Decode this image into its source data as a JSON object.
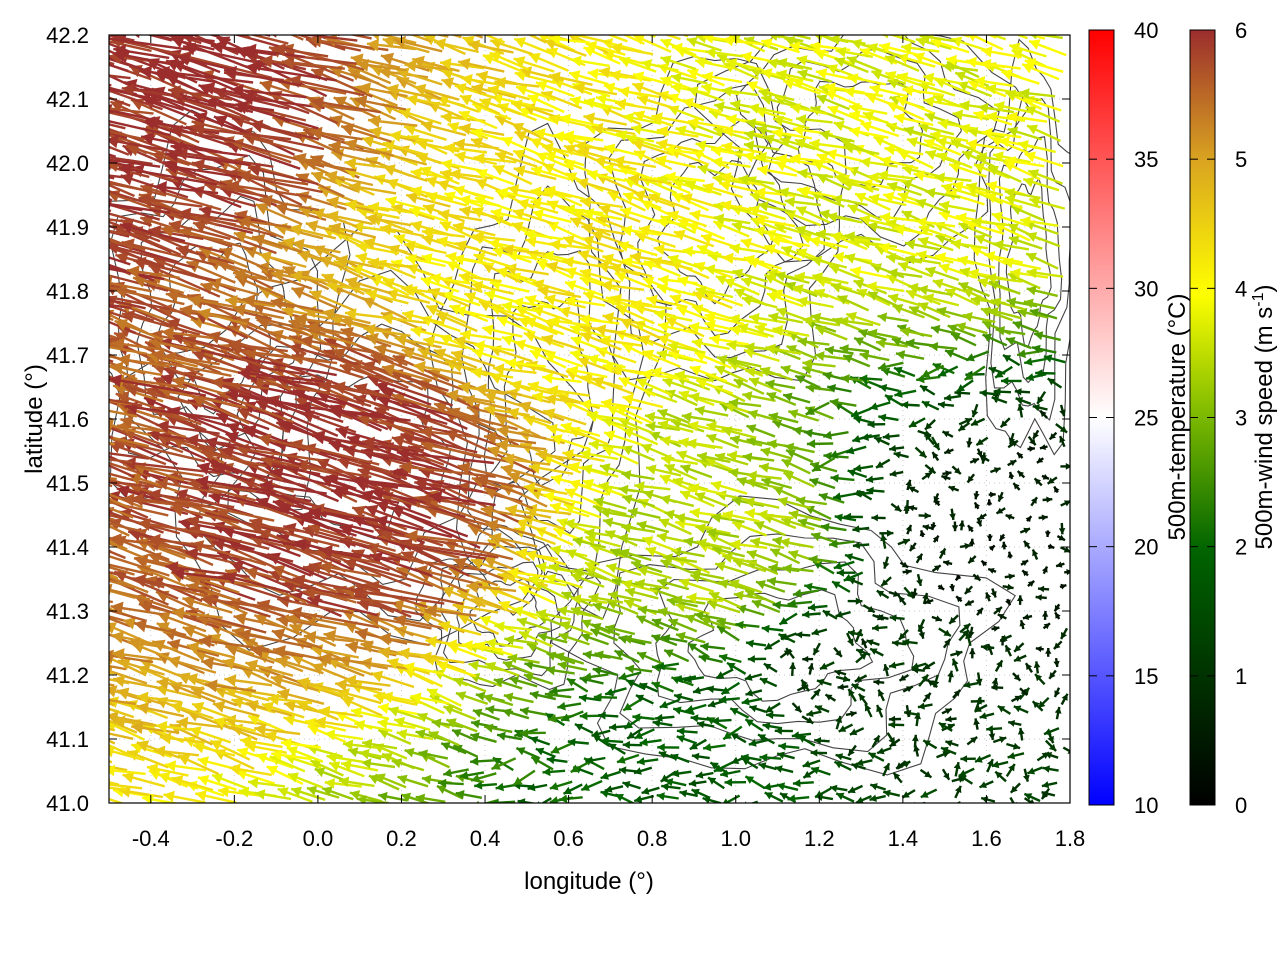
{
  "chart_data": {
    "type": "vector-field",
    "xlabel": "longitude (°)",
    "ylabel": "latitude (°)",
    "xlim": [
      -0.5,
      1.8
    ],
    "ylim": [
      41.0,
      42.2
    ],
    "xticks": [
      -0.4,
      -0.2,
      0.0,
      0.2,
      0.4,
      0.6,
      0.8,
      1.0,
      1.2,
      1.4,
      1.6,
      1.8
    ],
    "yticks": [
      41.0,
      41.1,
      41.2,
      41.3,
      41.4,
      41.5,
      41.6,
      41.7,
      41.8,
      41.9,
      42.0,
      42.1,
      42.2
    ],
    "xtick_labels": [
      "-0.4",
      "-0.2",
      "0.0",
      "0.2",
      "0.4",
      "0.6",
      "0.8",
      "1.0",
      "1.2",
      "1.4",
      "1.6",
      "1.8"
    ],
    "ytick_labels": [
      "41.0",
      "41.1",
      "41.2",
      "41.3",
      "41.4",
      "41.5",
      "41.6",
      "41.7",
      "41.8",
      "41.9",
      "42.0",
      "42.1",
      "42.2"
    ],
    "grid": true,
    "wind_field_description": "strong westward-south-westward 500 m winds over the west and north, weakening to near calm over the south-east (coast)",
    "wind_speed_samples": [
      {
        "lon": -0.4,
        "lat": 42.1,
        "speed": 6.0
      },
      {
        "lon": 0.2,
        "lat": 41.5,
        "speed": 6.0
      },
      {
        "lon": 0.6,
        "lat": 41.8,
        "speed": 4.2
      },
      {
        "lon": 1.0,
        "lat": 41.4,
        "speed": 3.5
      },
      {
        "lon": 1.3,
        "lat": 41.2,
        "speed": 1.0
      },
      {
        "lon": 1.6,
        "lat": 41.4,
        "speed": 0.5
      },
      {
        "lon": 1.5,
        "lat": 42.0,
        "speed": 3.8
      },
      {
        "lon": 1.0,
        "lat": 41.05,
        "speed": 1.8
      }
    ],
    "colorbars": [
      {
        "name": "temperature",
        "label": "500m-temperature (°C)",
        "range": [
          10,
          40
        ],
        "ticks": [
          10,
          15,
          20,
          25,
          30,
          35,
          40
        ],
        "tick_labels": [
          "10",
          "15",
          "20",
          "25",
          "30",
          "35",
          "40"
        ],
        "colors": [
          "#0000ff",
          "#ffffff",
          "#ff0000"
        ]
      },
      {
        "name": "wind_speed",
        "label_main": "500m-wind speed (m s",
        "label_sup": "-1",
        "label_end": ")",
        "range": [
          0,
          6
        ],
        "ticks": [
          0,
          1,
          2,
          3,
          4,
          5,
          6
        ],
        "tick_labels": [
          "0",
          "1",
          "2",
          "3",
          "4",
          "5",
          "6"
        ],
        "colors": [
          "#000000",
          "#006400",
          "#7ab800",
          "#ffff00",
          "#daa520",
          "#9b2d2d"
        ]
      }
    ]
  }
}
